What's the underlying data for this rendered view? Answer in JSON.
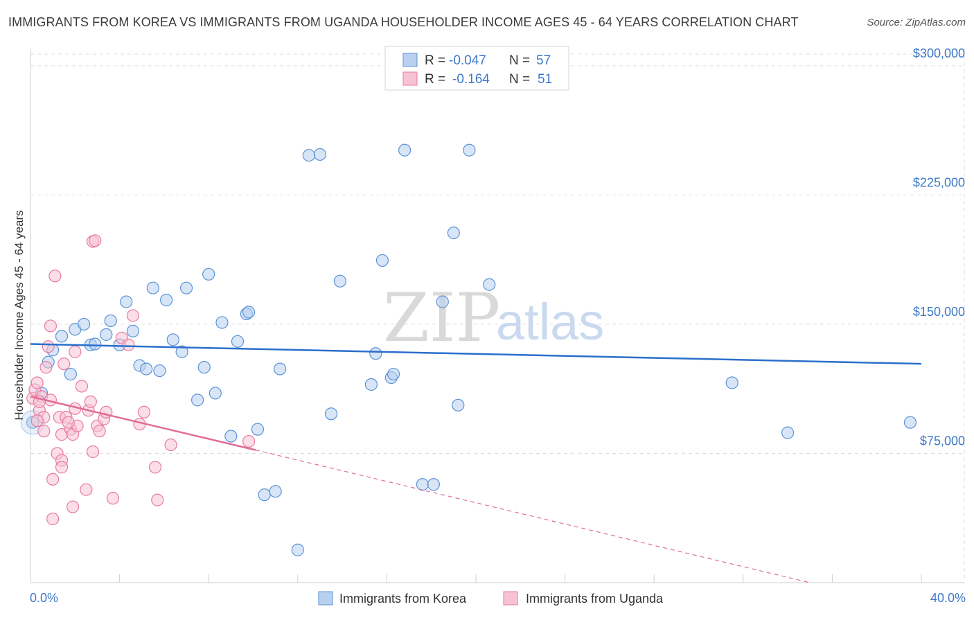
{
  "title": "IMMIGRANTS FROM KOREA VS IMMIGRANTS FROM UGANDA HOUSEHOLDER INCOME AGES 45 - 64 YEARS CORRELATION CHART",
  "source": "Source: ZipAtlas.com",
  "watermark": {
    "zip": "ZIP",
    "atlas": "atlas"
  },
  "colors": {
    "korea": "#5b93d6",
    "korea_fill": "#b8d0f0",
    "korea_line": "#2a6fcc",
    "uganda": "#e87aa0",
    "uganda_fill": "#f7c3d4",
    "uganda_line": "#e06b97",
    "grid": "#dedede",
    "tick_text": "#3d78c8"
  },
  "legend": {
    "rows": [
      {
        "r_label": "R =",
        "r_value": "-0.047",
        "n_label": "N =",
        "n_value": "57"
      },
      {
        "r_label": "R =",
        "r_value": "-0.164",
        "n_label": "N =",
        "n_value": "51"
      }
    ]
  },
  "bottom_legend": {
    "korea": "Immigrants from Korea",
    "uganda": "Immigrants from Uganda"
  },
  "chart_data": {
    "type": "scatter",
    "title": "IMMIGRANTS FROM KOREA VS IMMIGRANTS FROM UGANDA HOUSEHOLDER INCOME AGES 45 - 64 YEARS CORRELATION CHART",
    "xlabel": "",
    "ylabel": "Householder Income Ages 45 - 64 years",
    "xlim": [
      0,
      40
    ],
    "ylim": [
      0,
      310000
    ],
    "x_tick_labels": [
      "0.0%",
      "40.0%"
    ],
    "y_ticks": [
      75000,
      150000,
      225000,
      300000
    ],
    "y_tick_labels": [
      "$75,000",
      "$150,000",
      "$225,000",
      "$300,000"
    ],
    "series": [
      {
        "name": "Immigrants from Korea",
        "r": -0.047,
        "n": 57,
        "trend": {
          "x": [
            0,
            40
          ],
          "y": [
            138500,
            127000
          ]
        },
        "points": [
          [
            0.1,
            93000
          ],
          [
            0.5,
            110000
          ],
          [
            0.8,
            128000
          ],
          [
            1.0,
            135000
          ],
          [
            1.4,
            143000
          ],
          [
            1.8,
            121000
          ],
          [
            2.0,
            147000
          ],
          [
            2.4,
            150000
          ],
          [
            2.7,
            138000
          ],
          [
            2.9,
            138500
          ],
          [
            3.4,
            144000
          ],
          [
            3.6,
            152000
          ],
          [
            4.0,
            138000
          ],
          [
            4.3,
            163000
          ],
          [
            4.6,
            146000
          ],
          [
            4.9,
            126000
          ],
          [
            5.2,
            124000
          ],
          [
            5.5,
            171000
          ],
          [
            5.8,
            123000
          ],
          [
            6.1,
            164000
          ],
          [
            6.4,
            141000
          ],
          [
            6.8,
            134000
          ],
          [
            7.0,
            171000
          ],
          [
            7.5,
            106000
          ],
          [
            7.8,
            125000
          ],
          [
            8.0,
            179000
          ],
          [
            8.3,
            110000
          ],
          [
            8.6,
            151000
          ],
          [
            9.0,
            85000
          ],
          [
            9.3,
            140000
          ],
          [
            9.7,
            156000
          ],
          [
            9.8,
            157000
          ],
          [
            10.2,
            89000
          ],
          [
            10.5,
            51000
          ],
          [
            11.0,
            53000
          ],
          [
            11.2,
            124000
          ],
          [
            12.0,
            19000
          ],
          [
            12.5,
            248000
          ],
          [
            13.0,
            248500
          ],
          [
            13.5,
            98000
          ],
          [
            13.9,
            175000
          ],
          [
            15.3,
            115000
          ],
          [
            15.5,
            133000
          ],
          [
            15.8,
            187000
          ],
          [
            16.2,
            119000
          ],
          [
            16.3,
            121000
          ],
          [
            16.8,
            251000
          ],
          [
            17.6,
            57000
          ],
          [
            18.1,
            57000
          ],
          [
            18.5,
            163000
          ],
          [
            19.0,
            203000
          ],
          [
            19.2,
            103000
          ],
          [
            19.7,
            251000
          ],
          [
            20.6,
            173000
          ],
          [
            31.5,
            116000
          ],
          [
            34.0,
            87000
          ],
          [
            39.5,
            93000
          ]
        ]
      },
      {
        "name": "Immigrants from Uganda",
        "r": -0.164,
        "n": 51,
        "trend": {
          "x": [
            0,
            10.1
          ],
          "y": [
            108000,
            77000
          ]
        },
        "trend_dashed": {
          "x": [
            10.1,
            35
          ],
          "y": [
            77000,
            0
          ]
        },
        "points": [
          [
            0.1,
            107000
          ],
          [
            0.2,
            112000
          ],
          [
            0.3,
            116000
          ],
          [
            0.4,
            100000
          ],
          [
            0.5,
            108000
          ],
          [
            0.6,
            96000
          ],
          [
            0.6,
            88000
          ],
          [
            0.7,
            125000
          ],
          [
            0.8,
            137000
          ],
          [
            0.9,
            106000
          ],
          [
            0.9,
            149000
          ],
          [
            1.0,
            60000
          ],
          [
            1.0,
            37000
          ],
          [
            1.1,
            178000
          ],
          [
            1.2,
            75000
          ],
          [
            1.3,
            96000
          ],
          [
            1.4,
            86000
          ],
          [
            1.4,
            71000
          ],
          [
            1.4,
            67000
          ],
          [
            1.5,
            127000
          ],
          [
            1.6,
            96000
          ],
          [
            1.8,
            89000
          ],
          [
            1.9,
            44000
          ],
          [
            1.9,
            86000
          ],
          [
            2.0,
            134000
          ],
          [
            2.0,
            101000
          ],
          [
            2.1,
            91000
          ],
          [
            2.3,
            114000
          ],
          [
            2.5,
            54000
          ],
          [
            2.6,
            100000
          ],
          [
            2.7,
            105000
          ],
          [
            2.8,
            76000
          ],
          [
            2.8,
            198000
          ],
          [
            2.9,
            198500
          ],
          [
            3.0,
            91000
          ],
          [
            3.1,
            88000
          ],
          [
            3.3,
            95000
          ],
          [
            3.4,
            99000
          ],
          [
            3.7,
            49000
          ],
          [
            4.1,
            142000
          ],
          [
            4.4,
            138000
          ],
          [
            4.6,
            155000
          ],
          [
            4.9,
            92000
          ],
          [
            5.1,
            99000
          ],
          [
            5.6,
            67000
          ],
          [
            5.7,
            48000
          ],
          [
            6.3,
            80000
          ],
          [
            9.8,
            82000
          ],
          [
            0.3,
            94000
          ],
          [
            0.4,
            105000
          ],
          [
            1.7,
            93000
          ]
        ]
      }
    ]
  }
}
